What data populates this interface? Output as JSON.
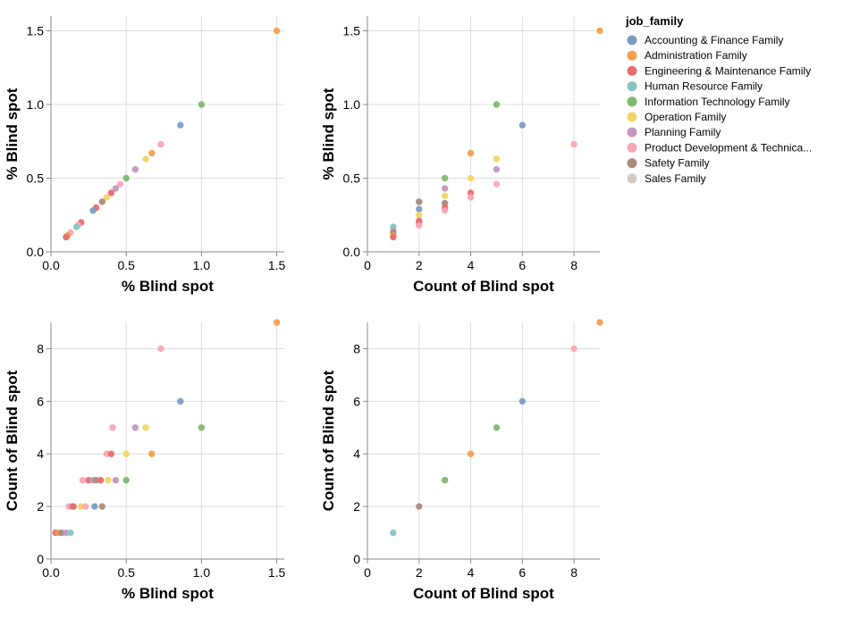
{
  "legend": {
    "title": "job_family",
    "entries": [
      {
        "label": "Accounting & Finance Family",
        "color": "#7b9dc4"
      },
      {
        "label": "Administration Family",
        "color": "#f3a04d"
      },
      {
        "label": "Engineering & Maintenance Family",
        "color": "#e66d6f"
      },
      {
        "label": "Human Resource Family",
        "color": "#85c5c0"
      },
      {
        "label": "Information Technology Family",
        "color": "#7fb870"
      },
      {
        "label": "Operation Family",
        "color": "#f0d564"
      },
      {
        "label": "Planning Family",
        "color": "#c497bd"
      },
      {
        "label": "Product Development & Technica...",
        "color": "#f8a7b4"
      },
      {
        "label": "Safety Family",
        "color": "#a98c7c"
      },
      {
        "label": "Sales Family",
        "color": "#d3cac6"
      }
    ]
  },
  "chart_data": [
    {
      "type": "scatter",
      "xlabel": "% Blind spot",
      "ylabel": "% Blind spot",
      "xlim": [
        0,
        1.55
      ],
      "ylim": [
        0,
        1.6
      ],
      "x_ticks": [
        "0.0",
        "0.5",
        "1.0",
        "1.5"
      ],
      "y_ticks": [
        "0.0",
        "0.5",
        "1.0",
        "1.5"
      ],
      "grid": true,
      "points": [
        {
          "x": 1.5,
          "y": 1.5,
          "color": "#f3a04d"
        },
        {
          "x": 1.0,
          "y": 1.0,
          "color": "#7fb870"
        },
        {
          "x": 0.86,
          "y": 0.86,
          "color": "#7b9dc4"
        },
        {
          "x": 0.73,
          "y": 0.73,
          "color": "#f8a7b4"
        },
        {
          "x": 0.67,
          "y": 0.67,
          "color": "#f3a04d"
        },
        {
          "x": 0.63,
          "y": 0.63,
          "color": "#f0d564"
        },
        {
          "x": 0.56,
          "y": 0.56,
          "color": "#c497bd"
        },
        {
          "x": 0.5,
          "y": 0.5,
          "color": "#7fb870"
        },
        {
          "x": 0.46,
          "y": 0.46,
          "color": "#f8a7b4"
        },
        {
          "x": 0.43,
          "y": 0.43,
          "color": "#c497bd"
        },
        {
          "x": 0.4,
          "y": 0.4,
          "color": "#e66d6f"
        },
        {
          "x": 0.37,
          "y": 0.37,
          "color": "#f0d564"
        },
        {
          "x": 0.34,
          "y": 0.34,
          "color": "#a98c7c"
        },
        {
          "x": 0.3,
          "y": 0.3,
          "color": "#e66d6f"
        },
        {
          "x": 0.28,
          "y": 0.28,
          "color": "#7b9dc4"
        },
        {
          "x": 0.2,
          "y": 0.2,
          "color": "#e66d6f"
        },
        {
          "x": 0.18,
          "y": 0.18,
          "color": "#f8a7b4"
        },
        {
          "x": 0.17,
          "y": 0.17,
          "color": "#85c5c0"
        },
        {
          "x": 0.13,
          "y": 0.13,
          "color": "#f8a7b4"
        },
        {
          "x": 0.11,
          "y": 0.11,
          "color": "#f3a04d"
        },
        {
          "x": 0.1,
          "y": 0.1,
          "color": "#e66d6f"
        }
      ]
    },
    {
      "type": "scatter",
      "xlabel": "Count of Blind spot",
      "ylabel": "% Blind spot",
      "xlim": [
        0,
        9
      ],
      "ylim": [
        0,
        1.6
      ],
      "x_ticks": [
        "0",
        "2",
        "4",
        "6",
        "8"
      ],
      "y_ticks": [
        "0.0",
        "0.5",
        "1.0",
        "1.5"
      ],
      "grid": true,
      "points": [
        {
          "x": 9,
          "y": 1.5,
          "color": "#f3a04d"
        },
        {
          "x": 5,
          "y": 1.0,
          "color": "#7fb870"
        },
        {
          "x": 6,
          "y": 0.86,
          "color": "#7b9dc4"
        },
        {
          "x": 8,
          "y": 0.73,
          "color": "#f8a7b4"
        },
        {
          "x": 4,
          "y": 0.67,
          "color": "#f3a04d"
        },
        {
          "x": 5,
          "y": 0.63,
          "color": "#f0d564"
        },
        {
          "x": 5,
          "y": 0.56,
          "color": "#c497bd"
        },
        {
          "x": 3,
          "y": 0.5,
          "color": "#7fb870"
        },
        {
          "x": 4,
          "y": 0.5,
          "color": "#f0d564"
        },
        {
          "x": 5,
          "y": 0.46,
          "color": "#f8a7b4"
        },
        {
          "x": 3,
          "y": 0.43,
          "color": "#c497bd"
        },
        {
          "x": 4,
          "y": 0.4,
          "color": "#e66d6f"
        },
        {
          "x": 3,
          "y": 0.38,
          "color": "#f0d564"
        },
        {
          "x": 4,
          "y": 0.37,
          "color": "#f8a7b4"
        },
        {
          "x": 2,
          "y": 0.34,
          "color": "#a98c7c"
        },
        {
          "x": 3,
          "y": 0.33,
          "color": "#a98c7c"
        },
        {
          "x": 3,
          "y": 0.3,
          "color": "#e66d6f"
        },
        {
          "x": 2,
          "y": 0.29,
          "color": "#7b9dc4"
        },
        {
          "x": 3,
          "y": 0.28,
          "color": "#f8a7b4"
        },
        {
          "x": 2,
          "y": 0.25,
          "color": "#f0d564"
        },
        {
          "x": 2,
          "y": 0.21,
          "color": "#e66d6f"
        },
        {
          "x": 2,
          "y": 0.2,
          "color": "#e66d6f"
        },
        {
          "x": 2,
          "y": 0.18,
          "color": "#f8a7b4"
        },
        {
          "x": 1,
          "y": 0.17,
          "color": "#85c5c0"
        },
        {
          "x": 1,
          "y": 0.14,
          "color": "#c497bd"
        },
        {
          "x": 1,
          "y": 0.13,
          "color": "#a98c7c"
        },
        {
          "x": 1,
          "y": 0.11,
          "color": "#f3a04d"
        },
        {
          "x": 1,
          "y": 0.1,
          "color": "#e66d6f"
        }
      ]
    },
    {
      "type": "scatter",
      "xlabel": "% Blind spot",
      "ylabel": "Count of Blind spot",
      "xlim": [
        0,
        1.55
      ],
      "ylim": [
        0,
        9
      ],
      "x_ticks": [
        "0.0",
        "0.5",
        "1.0",
        "1.5"
      ],
      "y_ticks": [
        "0",
        "2",
        "4",
        "6",
        "8"
      ],
      "grid": true,
      "points": [
        {
          "x": 1.5,
          "y": 9,
          "color": "#f3a04d"
        },
        {
          "x": 0.73,
          "y": 8,
          "color": "#f8a7b4"
        },
        {
          "x": 0.86,
          "y": 6,
          "color": "#7b9dc4"
        },
        {
          "x": 0.41,
          "y": 5,
          "color": "#f8a7b4"
        },
        {
          "x": 0.56,
          "y": 5,
          "color": "#c497bd"
        },
        {
          "x": 0.63,
          "y": 5,
          "color": "#f0d564"
        },
        {
          "x": 1.0,
          "y": 5,
          "color": "#7fb870"
        },
        {
          "x": 0.37,
          "y": 4,
          "color": "#f8a7b4"
        },
        {
          "x": 0.4,
          "y": 4,
          "color": "#e66d6f"
        },
        {
          "x": 0.5,
          "y": 4,
          "color": "#f0d564"
        },
        {
          "x": 0.67,
          "y": 4,
          "color": "#f3a04d"
        },
        {
          "x": 0.21,
          "y": 3,
          "color": "#f8a7b4"
        },
        {
          "x": 0.25,
          "y": 3,
          "color": "#e66d6f"
        },
        {
          "x": 0.28,
          "y": 3,
          "color": "#c497bd"
        },
        {
          "x": 0.3,
          "y": 3,
          "color": "#a98c7c"
        },
        {
          "x": 0.33,
          "y": 3,
          "color": "#e66d6f"
        },
        {
          "x": 0.38,
          "y": 3,
          "color": "#f0d564"
        },
        {
          "x": 0.43,
          "y": 3,
          "color": "#c497bd"
        },
        {
          "x": 0.5,
          "y": 3,
          "color": "#7fb870"
        },
        {
          "x": 0.12,
          "y": 2,
          "color": "#f8a7b4"
        },
        {
          "x": 0.14,
          "y": 2,
          "color": "#c497bd"
        },
        {
          "x": 0.15,
          "y": 2,
          "color": "#e66d6f"
        },
        {
          "x": 0.2,
          "y": 2,
          "color": "#f0d564"
        },
        {
          "x": 0.23,
          "y": 2,
          "color": "#f8a7b4"
        },
        {
          "x": 0.29,
          "y": 2,
          "color": "#7b9dc4"
        },
        {
          "x": 0.34,
          "y": 2,
          "color": "#a98c7c"
        },
        {
          "x": 0.03,
          "y": 1,
          "color": "#e66d6f"
        },
        {
          "x": 0.05,
          "y": 1,
          "color": "#f3a04d"
        },
        {
          "x": 0.07,
          "y": 1,
          "color": "#a98c7c"
        },
        {
          "x": 0.1,
          "y": 1,
          "color": "#c497bd"
        },
        {
          "x": 0.13,
          "y": 1,
          "color": "#85c5c0"
        }
      ]
    },
    {
      "type": "scatter",
      "xlabel": "Count of Blind spot",
      "ylabel": "Count of Blind spot",
      "xlim": [
        0,
        9
      ],
      "ylim": [
        0,
        9
      ],
      "x_ticks": [
        "0",
        "2",
        "4",
        "6",
        "8"
      ],
      "y_ticks": [
        "0",
        "2",
        "4",
        "6",
        "8"
      ],
      "grid": true,
      "points": [
        {
          "x": 9,
          "y": 9,
          "color": "#f3a04d"
        },
        {
          "x": 8,
          "y": 8,
          "color": "#f8a7b4"
        },
        {
          "x": 6,
          "y": 6,
          "color": "#7b9dc4"
        },
        {
          "x": 5,
          "y": 5,
          "color": "#7fb870"
        },
        {
          "x": 4,
          "y": 4,
          "color": "#f3a04d"
        },
        {
          "x": 3,
          "y": 3,
          "color": "#7fb870"
        },
        {
          "x": 2,
          "y": 2,
          "color": "#a98c7c"
        },
        {
          "x": 1,
          "y": 1,
          "color": "#85c5c0"
        }
      ]
    }
  ]
}
